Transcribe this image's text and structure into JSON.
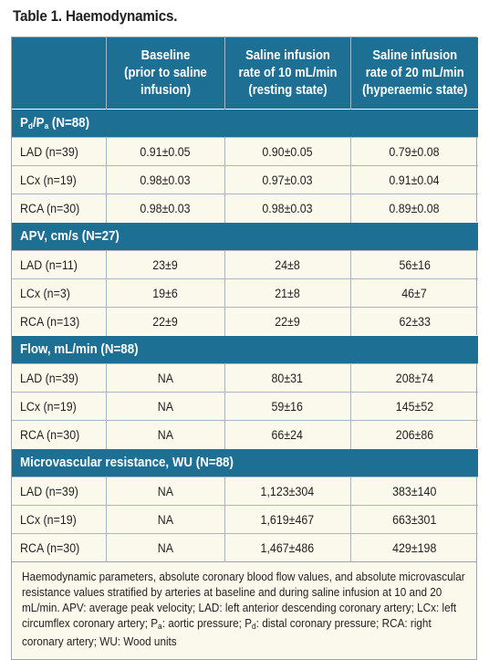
{
  "title": "Table 1. Haemodynamics.",
  "columns": [
    {
      "lines": [
        "Baseline",
        "(prior to saline",
        "infusion)"
      ]
    },
    {
      "lines": [
        "Saline infusion",
        "rate of 10 mL/min",
        "(resting state)"
      ]
    },
    {
      "lines": [
        "Saline infusion",
        "rate of 20 mL/min",
        "(hyperaemic state)"
      ]
    }
  ],
  "pdpa_section": {
    "P": "P",
    "d": "d",
    "slash": "/P",
    "a": "a",
    "n": " (N=88)"
  },
  "sections": [
    {
      "rows": [
        {
          "label": "LAD (n=39)",
          "values": [
            "0.91±0.05",
            "0.90±0.05",
            "0.79±0.08"
          ]
        },
        {
          "label": "LCx (n=19)",
          "values": [
            "0.98±0.03",
            "0.97±0.03",
            "0.91±0.04"
          ]
        },
        {
          "label": "RCA (n=30)",
          "values": [
            "0.98±0.03",
            "0.98±0.03",
            "0.89±0.08"
          ]
        }
      ]
    },
    {
      "title": "APV, cm/s (N=27)",
      "rows": [
        {
          "label": "LAD (n=11)",
          "values": [
            "23±9",
            "24±8",
            "56±16"
          ]
        },
        {
          "label": "LCx (n=3)",
          "values": [
            "19±6",
            "21±8",
            "46±7"
          ]
        },
        {
          "label": "RCA (n=13)",
          "values": [
            "22±9",
            "22±9",
            "62±33"
          ]
        }
      ]
    },
    {
      "title": "Flow, mL/min (N=88)",
      "rows": [
        {
          "label": "LAD (n=39)",
          "values": [
            "NA",
            "80±31",
            "208±74"
          ]
        },
        {
          "label": "LCx (n=19)",
          "values": [
            "NA",
            "59±16",
            "145±52"
          ]
        },
        {
          "label": "RCA (n=30)",
          "values": [
            "NA",
            "66±24",
            "206±86"
          ]
        }
      ]
    },
    {
      "title": "Microvascular resistance, WU (N=88)",
      "rows": [
        {
          "label": "LAD (n=39)",
          "values": [
            "NA",
            "1,123±304",
            "383±140"
          ]
        },
        {
          "label": "LCx (n=19)",
          "values": [
            "NA",
            "1,619±467",
            "663±301"
          ]
        },
        {
          "label": "RCA (n=30)",
          "values": [
            "NA",
            "1,467±486",
            "429±198"
          ]
        }
      ]
    }
  ],
  "footnote": {
    "part1": "Haemodynamic parameters, absolute coronary blood flow values, and absolute microvascular resistance values stratified by arteries at baseline and during saline infusion at 10 and 20 mL/min. APV: average peak velocity; LAD: left anterior descending coronary artery; LCx: left circumflex coronary artery; P",
    "sub_a": "a",
    "part2": ": aortic pressure; P",
    "sub_d": "d",
    "part3": ": distal coronary pressure; RCA: right coronary artery; WU: Wood units"
  }
}
